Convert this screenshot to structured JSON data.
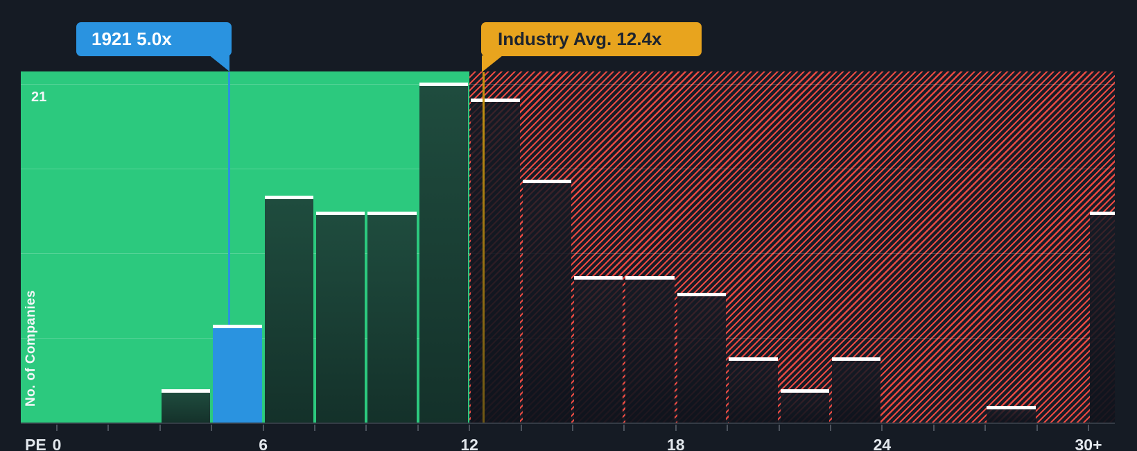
{
  "chart": {
    "y_axis_label": "No. of Companies",
    "y_max_tick": "21",
    "x_axis_prefix": "PE"
  },
  "callouts": {
    "company": {
      "label": "1921 5.0x",
      "pe_value": 5.0
    },
    "industry": {
      "label": "Industry Avg. 12.4x",
      "pe_value": 12.4
    }
  },
  "chart_data": {
    "type": "bar",
    "subtype": "histogram",
    "title": "",
    "xlabel": "PE",
    "ylabel": "No. of Companies",
    "x_tick_labels": [
      {
        "value": 0,
        "label": "0"
      },
      {
        "value": 6,
        "label": "6"
      },
      {
        "value": 12,
        "label": "12"
      },
      {
        "value": 18,
        "label": "18"
      },
      {
        "value": 24,
        "label": "24"
      },
      {
        "value": 30,
        "label": "30+"
      }
    ],
    "minor_tick_step": 1.5,
    "x_range_shown": [
      -1,
      31
    ],
    "y_max": 21,
    "gridline_values": [
      21,
      15.75,
      10.5,
      5.25
    ],
    "bin_width": 1.5,
    "bins": [
      {
        "start": 3,
        "end": 4.5,
        "count": 2,
        "highlight": false
      },
      {
        "start": 4.5,
        "end": 6,
        "count": 6,
        "highlight": true
      },
      {
        "start": 6,
        "end": 7.5,
        "count": 14,
        "highlight": false
      },
      {
        "start": 7.5,
        "end": 9,
        "count": 13,
        "highlight": false
      },
      {
        "start": 9,
        "end": 10.5,
        "count": 13,
        "highlight": false
      },
      {
        "start": 10.5,
        "end": 12,
        "count": 21,
        "highlight": false
      },
      {
        "start": 12,
        "end": 13.5,
        "count": 20,
        "highlight": false
      },
      {
        "start": 13.5,
        "end": 15,
        "count": 15,
        "highlight": false
      },
      {
        "start": 15,
        "end": 16.5,
        "count": 9,
        "highlight": false
      },
      {
        "start": 16.5,
        "end": 18,
        "count": 9,
        "highlight": false
      },
      {
        "start": 18,
        "end": 19.5,
        "count": 8,
        "highlight": false
      },
      {
        "start": 19.5,
        "end": 21,
        "count": 4,
        "highlight": false
      },
      {
        "start": 21,
        "end": 22.5,
        "count": 2,
        "highlight": false
      },
      {
        "start": 22.5,
        "end": 24,
        "count": 4,
        "highlight": false
      },
      {
        "start": 24,
        "end": 25.5,
        "count": 0,
        "highlight": false
      },
      {
        "start": 25.5,
        "end": 27,
        "count": 0,
        "highlight": false
      },
      {
        "start": 27,
        "end": 28.5,
        "count": 1,
        "highlight": false
      },
      {
        "start": 28.5,
        "end": 30,
        "count": 0,
        "highlight": false
      },
      {
        "start": 30,
        "end": 31.5,
        "count": 13,
        "highlight": false
      }
    ],
    "zones": [
      {
        "name": "undervalued",
        "to_pe": 12,
        "style": "solid-green"
      },
      {
        "name": "overvalued",
        "from_pe": 12,
        "style": "red-hatch"
      }
    ],
    "markers": [
      {
        "name": "company",
        "label": "1921 5.0x",
        "pe": 5.0
      },
      {
        "name": "industry-average",
        "label": "Industry Avg. 12.4x",
        "pe": 12.4
      }
    ],
    "legend": "none",
    "grid": "horizontal-only"
  },
  "colors": {
    "background": "#151B24",
    "undervalued_zone": "#2CC97E",
    "overvalued_hatch_red": "#E94A42",
    "bar_dark_top": "#1F4C3E",
    "bar_dark_bottom": "#14312A",
    "highlight_blue": "#2A93E0",
    "industry_yellow": "#E8A41E",
    "industry_line_dark": "#6E5713",
    "bar_cap_white": "#FFFFFF",
    "axis_text": "#E2E7EC"
  }
}
